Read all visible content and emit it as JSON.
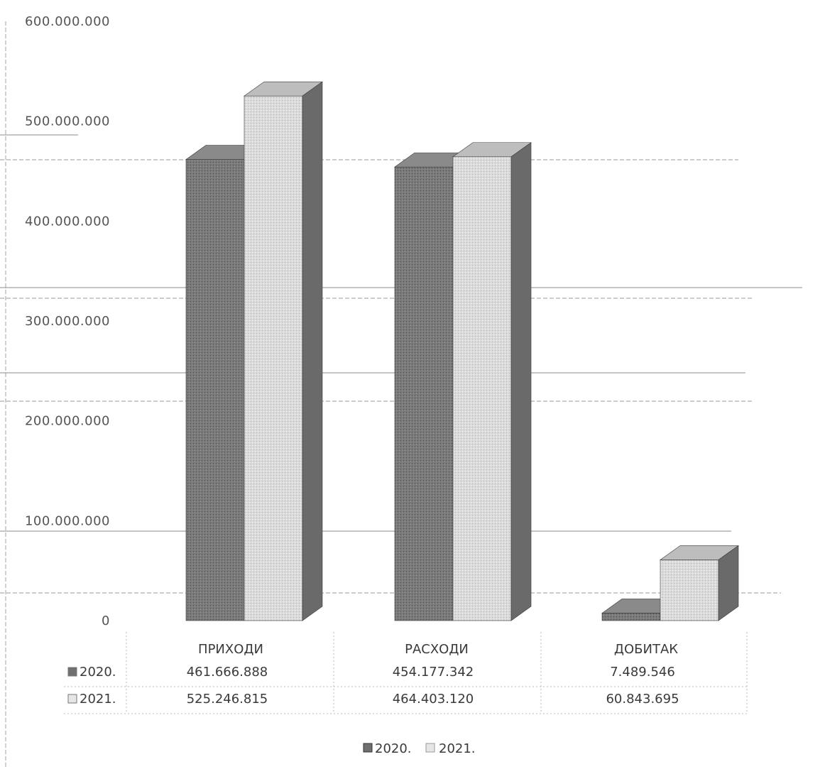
{
  "chart_data": {
    "type": "bar",
    "categories": [
      "ПРИХОДИ",
      "РАСХОДИ",
      "ДОБИТАК"
    ],
    "series": [
      {
        "name": "2020.",
        "values": [
          461666888,
          454177342,
          7489546
        ],
        "labels": [
          "461.666.888",
          "454.177.342",
          "7.489.546"
        ],
        "color": "#7a7a7a"
      },
      {
        "name": "2021.",
        "values": [
          525246815,
          464403120,
          60843695
        ],
        "labels": [
          "525.246.815",
          "464.403.120",
          "60.843.695"
        ],
        "color": "#d9d9d9"
      }
    ],
    "ylim": [
      0,
      600000000
    ],
    "yticks": [
      "0",
      "100.000.000",
      "200.000.000",
      "300.000.000",
      "400.000.000",
      "500.000.000",
      "600.000.000"
    ],
    "grid": true,
    "legend": "bottom",
    "table": {
      "rows": [
        {
          "key": "2020.",
          "cells": [
            "461.666.888",
            "454.177.342",
            "7.489.546"
          ]
        },
        {
          "key": "2021.",
          "cells": [
            "525.246.815",
            "464.403.120",
            "60.843.695"
          ]
        }
      ]
    }
  }
}
